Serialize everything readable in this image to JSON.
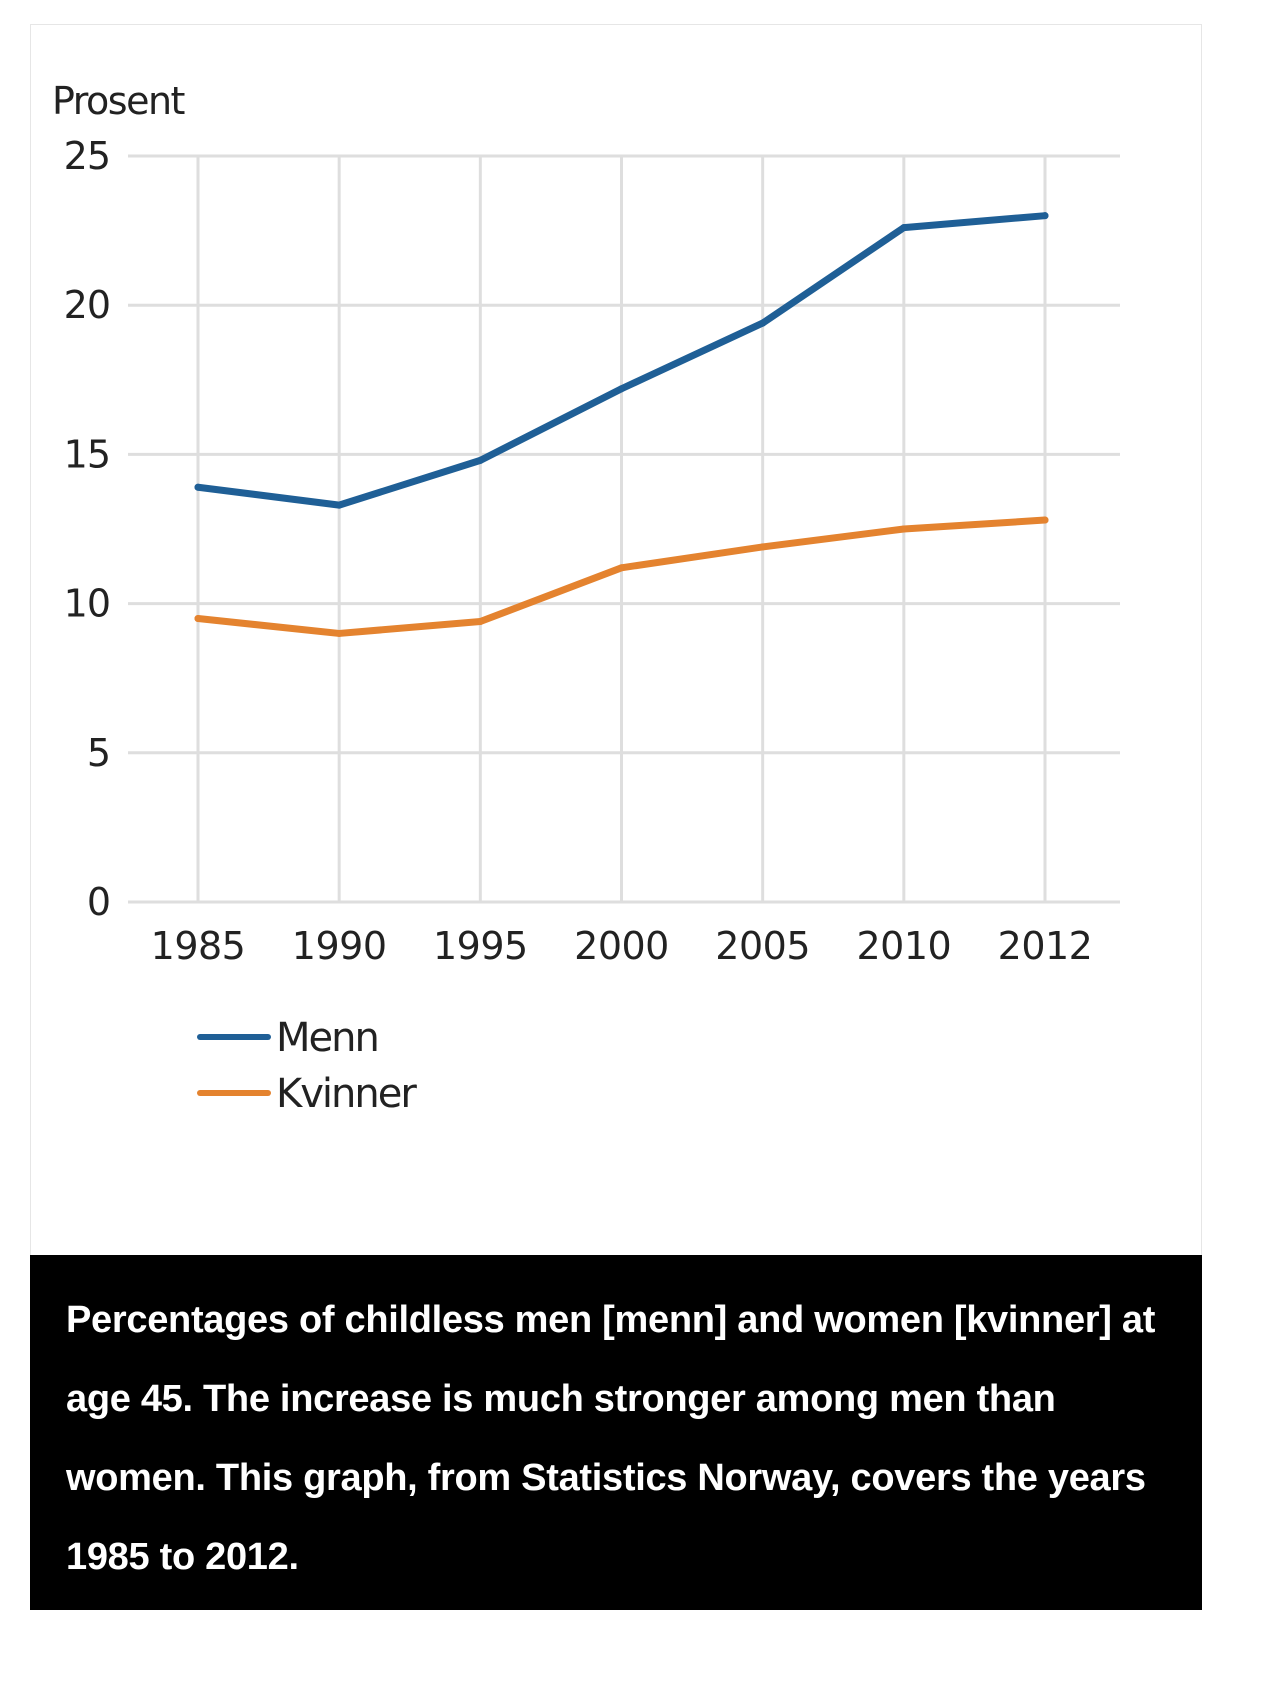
{
  "chart_data": {
    "type": "line",
    "ylabel": "Prosent",
    "xlabel": "",
    "x": [
      "1985",
      "1990",
      "1995",
      "2000",
      "2005",
      "2010",
      "2012"
    ],
    "ylim": [
      0,
      25
    ],
    "yticks": [
      "0",
      "5",
      "10",
      "15",
      "20",
      "25"
    ],
    "grid": true,
    "legend_position": "bottom-left",
    "series": [
      {
        "name": "Menn",
        "color": "#1f5f96",
        "values": [
          13.9,
          13.3,
          14.8,
          17.2,
          19.4,
          22.6,
          23.0
        ]
      },
      {
        "name": "Kvinner",
        "color": "#e4832f",
        "values": [
          9.5,
          9.0,
          9.4,
          11.2,
          11.9,
          12.5,
          12.8
        ]
      }
    ]
  },
  "caption": {
    "text": "Percentages of childless men [menn] and women [kvinner] at age 45. The increase is much stronger among men than women. This graph, from Statistics Norway, covers the years 1985 to 2012."
  }
}
